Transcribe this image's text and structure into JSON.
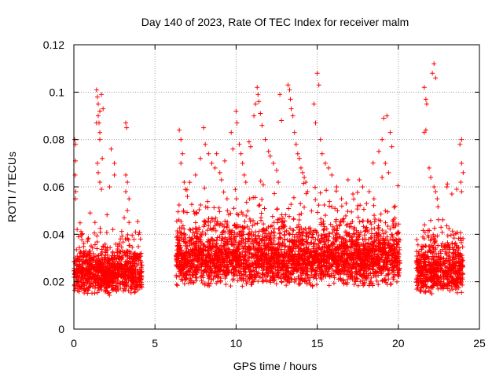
{
  "chart_data": {
    "type": "scatter",
    "title": "Day 140 of 2023, Rate Of TEC Index for receiver malm",
    "xlabel": "GPS time / hours",
    "ylabel": "ROTI / TECUs",
    "xlim": [
      0,
      25
    ],
    "ylim": [
      0,
      0.12
    ],
    "xticks": [
      "0",
      "5",
      "10",
      "15",
      "20",
      "25"
    ],
    "yticks": [
      "0",
      "0.02",
      "0.04",
      "0.06",
      "0.08",
      "0.1",
      "0.12"
    ],
    "grid": true,
    "marker": "+",
    "color": "#ff0000",
    "series": [
      {
        "segments": [
          {
            "start": 0.0,
            "end": 4.2,
            "base": 0.019,
            "spread": 0.011
          },
          {
            "start": 6.3,
            "end": 20.1,
            "base": 0.024,
            "spread": 0.014
          },
          {
            "start": 21.1,
            "end": 24.0,
            "base": 0.02,
            "spread": 0.012
          }
        ],
        "points": [
          [
            0.05,
            0.08
          ],
          [
            0.1,
            0.078
          ],
          [
            0.1,
            0.071
          ],
          [
            0.08,
            0.065
          ],
          [
            0.12,
            0.058
          ],
          [
            0.1,
            0.055
          ],
          [
            0.2,
            0.042
          ],
          [
            0.5,
            0.04
          ],
          [
            1.0,
            0.049
          ],
          [
            1.3,
            0.045
          ],
          [
            1.4,
            0.101
          ],
          [
            1.45,
            0.098
          ],
          [
            1.5,
            0.095
          ],
          [
            1.5,
            0.09
          ],
          [
            1.55,
            0.087
          ],
          [
            1.6,
            0.083
          ],
          [
            1.6,
            0.08
          ],
          [
            1.45,
            0.07
          ],
          [
            1.5,
            0.066
          ],
          [
            1.6,
            0.062
          ],
          [
            1.7,
            0.059
          ],
          [
            1.75,
            0.072
          ],
          [
            1.7,
            0.099
          ],
          [
            1.8,
            0.093
          ],
          [
            1.6,
            0.092
          ],
          [
            1.4,
            0.087
          ],
          [
            2.3,
            0.076
          ],
          [
            2.5,
            0.07
          ],
          [
            2.5,
            0.065
          ],
          [
            2.2,
            0.06
          ],
          [
            3.2,
            0.065
          ],
          [
            3.3,
            0.062
          ],
          [
            3.2,
            0.058
          ],
          [
            3.4,
            0.055
          ],
          [
            3.3,
            0.05
          ],
          [
            3.1,
            0.047
          ],
          [
            3.2,
            0.087
          ],
          [
            3.25,
            0.085
          ],
          [
            3.4,
            0.045
          ],
          [
            3.8,
            0.041
          ],
          [
            4.0,
            0.04
          ],
          [
            6.5,
            0.084
          ],
          [
            6.6,
            0.08
          ],
          [
            6.7,
            0.074
          ],
          [
            6.6,
            0.07
          ],
          [
            6.8,
            0.062
          ],
          [
            7.0,
            0.056
          ],
          [
            7.5,
            0.065
          ],
          [
            7.8,
            0.072
          ],
          [
            8.0,
            0.085
          ],
          [
            8.1,
            0.078
          ],
          [
            8.3,
            0.074
          ],
          [
            8.5,
            0.07
          ],
          [
            8.7,
            0.068
          ],
          [
            8.8,
            0.074
          ],
          [
            9.0,
            0.066
          ],
          [
            9.1,
            0.063
          ],
          [
            9.3,
            0.071
          ],
          [
            9.7,
            0.083
          ],
          [
            9.8,
            0.076
          ],
          [
            10.0,
            0.092
          ],
          [
            10.05,
            0.087
          ],
          [
            10.2,
            0.078
          ],
          [
            10.3,
            0.074
          ],
          [
            10.4,
            0.07
          ],
          [
            10.5,
            0.065
          ],
          [
            10.6,
            0.062
          ],
          [
            10.8,
            0.079
          ],
          [
            10.9,
            0.077
          ],
          [
            11.1,
            0.09
          ],
          [
            11.2,
            0.095
          ],
          [
            11.3,
            0.102
          ],
          [
            11.35,
            0.099
          ],
          [
            11.4,
            0.096
          ],
          [
            11.5,
            0.091
          ],
          [
            11.6,
            0.086
          ],
          [
            11.8,
            0.08
          ],
          [
            12.0,
            0.075
          ],
          [
            12.1,
            0.073
          ],
          [
            12.3,
            0.07
          ],
          [
            12.5,
            0.067
          ],
          [
            12.6,
            0.062
          ],
          [
            12.8,
            0.088
          ],
          [
            12.7,
            0.099
          ],
          [
            13.2,
            0.103
          ],
          [
            13.3,
            0.101
          ],
          [
            13.35,
            0.097
          ],
          [
            13.4,
            0.093
          ],
          [
            13.5,
            0.09
          ],
          [
            13.6,
            0.083
          ],
          [
            13.7,
            0.078
          ],
          [
            13.8,
            0.074
          ],
          [
            13.9,
            0.072
          ],
          [
            14.0,
            0.068
          ],
          [
            14.1,
            0.066
          ],
          [
            14.2,
            0.064
          ],
          [
            14.3,
            0.062
          ],
          [
            14.4,
            0.058
          ],
          [
            14.8,
            0.095
          ],
          [
            14.9,
            0.087
          ],
          [
            15.0,
            0.108
          ],
          [
            15.1,
            0.103
          ],
          [
            15.2,
            0.08
          ],
          [
            15.3,
            0.074
          ],
          [
            15.5,
            0.07
          ],
          [
            15.7,
            0.068
          ],
          [
            15.9,
            0.065
          ],
          [
            16.2,
            0.06
          ],
          [
            16.5,
            0.055
          ],
          [
            16.9,
            0.063
          ],
          [
            17.2,
            0.057
          ],
          [
            17.6,
            0.063
          ],
          [
            17.8,
            0.06
          ],
          [
            18.2,
            0.058
          ],
          [
            18.5,
            0.055
          ],
          [
            18.8,
            0.075
          ],
          [
            19.0,
            0.08
          ],
          [
            19.1,
            0.089
          ],
          [
            19.3,
            0.09
          ],
          [
            19.5,
            0.083
          ],
          [
            19.6,
            0.077
          ],
          [
            19.2,
            0.07
          ],
          [
            19.4,
            0.066
          ],
          [
            19.0,
            0.064
          ],
          [
            21.6,
            0.102
          ],
          [
            21.7,
            0.097
          ],
          [
            21.75,
            0.095
          ],
          [
            21.7,
            0.084
          ],
          [
            21.6,
            0.083
          ],
          [
            22.1,
            0.108
          ],
          [
            22.2,
            0.112
          ],
          [
            22.3,
            0.106
          ],
          [
            21.9,
            0.068
          ],
          [
            22.0,
            0.064
          ],
          [
            22.2,
            0.06
          ],
          [
            22.3,
            0.058
          ],
          [
            22.4,
            0.055
          ],
          [
            23.0,
            0.06
          ],
          [
            23.3,
            0.057
          ],
          [
            23.6,
            0.059
          ],
          [
            23.8,
            0.078
          ],
          [
            23.9,
            0.08
          ],
          [
            23.9,
            0.07
          ],
          [
            24.0,
            0.066
          ],
          [
            23.85,
            0.062
          ],
          [
            23.9,
            0.058
          ]
        ]
      }
    ]
  }
}
